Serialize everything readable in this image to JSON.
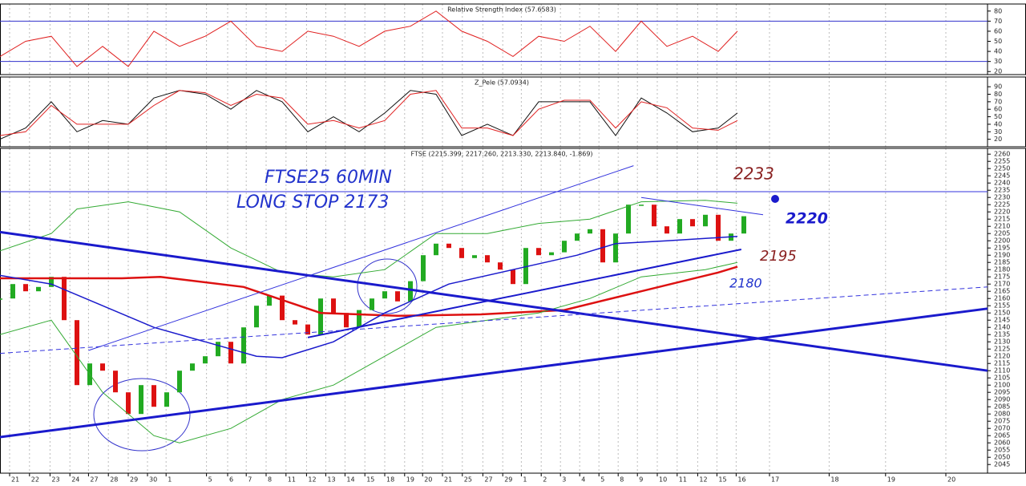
{
  "chart_data": [
    {
      "type": "line",
      "title": "Relative Strength Index (57.6583)",
      "xlim": [
        0,
        154
      ],
      "ylim": [
        17,
        87
      ],
      "yticks": [
        20,
        30,
        40,
        50,
        60,
        70,
        80
      ],
      "hlines": [
        70,
        30
      ],
      "hline_color": "#3333cc",
      "series": [
        {
          "color": "#e02020",
          "x": [
            0,
            4,
            8,
            12,
            16,
            20,
            24,
            28,
            32,
            36,
            40,
            44,
            48,
            52,
            56,
            60,
            64,
            68,
            72,
            76,
            80,
            84,
            88,
            92,
            96,
            100,
            104,
            108,
            112,
            115
          ],
          "values": [
            35,
            50,
            55,
            25,
            45,
            25,
            60,
            45,
            55,
            70,
            45,
            40,
            60,
            55,
            45,
            60,
            65,
            80,
            60,
            50,
            35,
            55,
            50,
            65,
            40,
            70,
            45,
            55,
            40,
            60
          ]
        }
      ]
    },
    {
      "type": "line",
      "title": "Z_Pele (57.0934)",
      "xlim": [
        0,
        154
      ],
      "ylim": [
        10,
        103
      ],
      "yticks": [
        20,
        30,
        40,
        50,
        60,
        70,
        80,
        90
      ],
      "series": [
        {
          "color": "#111111",
          "x": [
            0,
            4,
            8,
            12,
            16,
            20,
            24,
            28,
            32,
            36,
            40,
            44,
            48,
            52,
            56,
            60,
            64,
            68,
            72,
            76,
            80,
            84,
            88,
            92,
            96,
            100,
            104,
            108,
            112,
            115
          ],
          "values": [
            20,
            35,
            70,
            30,
            45,
            40,
            75,
            85,
            80,
            60,
            85,
            70,
            30,
            50,
            30,
            55,
            85,
            80,
            25,
            40,
            25,
            70,
            70,
            70,
            25,
            75,
            55,
            30,
            35,
            55
          ]
        },
        {
          "color": "#e02020",
          "x": [
            0,
            4,
            8,
            12,
            16,
            20,
            24,
            28,
            32,
            36,
            40,
            44,
            48,
            52,
            56,
            60,
            64,
            68,
            72,
            76,
            80,
            84,
            88,
            92,
            96,
            100,
            104,
            108,
            112,
            115
          ],
          "values": [
            25,
            30,
            65,
            40,
            40,
            40,
            65,
            85,
            82,
            65,
            80,
            75,
            40,
            45,
            35,
            45,
            80,
            85,
            35,
            35,
            25,
            60,
            72,
            72,
            35,
            70,
            62,
            35,
            32,
            45
          ]
        }
      ]
    },
    {
      "type": "candlestick",
      "title": "FTSE (2215.399, 2217.260, 2213.330, 2213.840, -1.869)",
      "xlim": [
        0,
        154
      ],
      "ylim": [
        2039,
        2264
      ],
      "yticks": [
        2045,
        2050,
        2055,
        2060,
        2065,
        2070,
        2075,
        2080,
        2085,
        2090,
        2095,
        2100,
        2105,
        2110,
        2115,
        2120,
        2125,
        2130,
        2135,
        2140,
        2145,
        2150,
        2155,
        2160,
        2165,
        2170,
        2175,
        2180,
        2185,
        2190,
        2195,
        2200,
        2205,
        2210,
        2215,
        2220,
        2225,
        2230,
        2235,
        2240,
        2245,
        2250,
        2255,
        2260
      ],
      "xticks": [
        {
          "value": 1.5,
          "label": "21"
        },
        {
          "value": 4.6,
          "label": "22"
        },
        {
          "value": 7.8,
          "label": "23"
        },
        {
          "value": 10.9,
          "label": "24"
        },
        {
          "value": 13.8,
          "label": "27"
        },
        {
          "value": 16.9,
          "label": "28"
        },
        {
          "value": 20,
          "label": "29"
        },
        {
          "value": 23,
          "label": "30"
        },
        {
          "value": 25.9,
          "label": "1"
        },
        {
          "value": 32.2,
          "label": "5"
        },
        {
          "value": 35.5,
          "label": "6"
        },
        {
          "value": 38.4,
          "label": "7"
        },
        {
          "value": 41.5,
          "label": "8"
        },
        {
          "value": 44.6,
          "label": "11"
        },
        {
          "value": 47.8,
          "label": "12"
        },
        {
          "value": 50.8,
          "label": "13"
        },
        {
          "value": 53.8,
          "label": "14"
        },
        {
          "value": 56.9,
          "label": "15"
        },
        {
          "value": 60,
          "label": "18"
        },
        {
          "value": 63.1,
          "label": "19"
        },
        {
          "value": 65.9,
          "label": "20"
        },
        {
          "value": 69,
          "label": "21"
        },
        {
          "value": 72.1,
          "label": "25"
        },
        {
          "value": 75.3,
          "label": "27"
        },
        {
          "value": 78.4,
          "label": "29"
        },
        {
          "value": 81.3,
          "label": "1"
        },
        {
          "value": 84.4,
          "label": "2"
        },
        {
          "value": 87.4,
          "label": "3"
        },
        {
          "value": 90.4,
          "label": "4"
        },
        {
          "value": 93.4,
          "label": "5"
        },
        {
          "value": 96.4,
          "label": "8"
        },
        {
          "value": 99.4,
          "label": "9"
        },
        {
          "value": 102.5,
          "label": "10"
        },
        {
          "value": 105.6,
          "label": "11"
        },
        {
          "value": 108.8,
          "label": "12"
        },
        {
          "value": 111.8,
          "label": "15"
        },
        {
          "value": 114.8,
          "label": "16"
        },
        {
          "value": 120,
          "label": "17"
        },
        {
          "value": 129.3,
          "label": "18"
        },
        {
          "value": 138.1,
          "label": "19"
        },
        {
          "value": 147.5,
          "label": "20"
        }
      ],
      "up_color": "#22aa22",
      "down_color": "#dd1111",
      "x": [
        0,
        2,
        4,
        6,
        8,
        10,
        12,
        14,
        16,
        18,
        20,
        22,
        24,
        26,
        28,
        30,
        32,
        34,
        36,
        38,
        40,
        42,
        44,
        46,
        48,
        50,
        52,
        54,
        56,
        58,
        60,
        62,
        64,
        66,
        68,
        70,
        72,
        74,
        76,
        78,
        80,
        82,
        84,
        86,
        88,
        90,
        92,
        94,
        96,
        98,
        100,
        102,
        104,
        106,
        108,
        110,
        112,
        114,
        116
      ],
      "values": [
        2160,
        2170,
        2165,
        2168,
        2175,
        2145,
        2100,
        2115,
        2110,
        2095,
        2080,
        2100,
        2085,
        2095,
        2110,
        2115,
        2120,
        2130,
        2115,
        2140,
        2155,
        2162,
        2145,
        2142,
        2135,
        2160,
        2150,
        2140,
        2152,
        2160,
        2165,
        2158,
        2172,
        2190,
        2198,
        2195,
        2188,
        2190,
        2185,
        2180,
        2170,
        2195,
        2190,
        2192,
        2200,
        2205,
        2208,
        2185,
        2205,
        2225,
        2225,
        2210,
        2205,
        2215,
        2210,
        2218,
        2200,
        2205,
        2217
      ],
      "series": [
        {
          "color": "#dd1111",
          "width": 2.5,
          "x": [
            0,
            19,
            25,
            38,
            50,
            62,
            75,
            88,
            100,
            112,
            115
          ],
          "values": [
            2174,
            2174,
            2175,
            2168,
            2150,
            2148,
            2149,
            2152,
            2165,
            2178,
            2182
          ]
        },
        {
          "color": "#1a1acc",
          "width": 1.5,
          "x": [
            0,
            8,
            16,
            24,
            32,
            40,
            44,
            52,
            60,
            70,
            80,
            90,
            96,
            104,
            115
          ],
          "values": [
            2176,
            2170,
            2155,
            2140,
            2130,
            2120,
            2119,
            2130,
            2150,
            2170,
            2180,
            2190,
            2198,
            2200,
            2203
          ]
        },
        {
          "color": "#33aa33",
          "width": 1,
          "x": [
            0,
            8,
            12,
            20,
            28,
            36,
            44,
            52,
            60,
            68,
            76,
            84,
            92,
            100,
            110,
            115
          ],
          "values": [
            2193,
            2205,
            2222,
            2227,
            2220,
            2195,
            2178,
            2175,
            2180,
            2205,
            2205,
            2212,
            2215,
            2227,
            2228,
            2226
          ]
        },
        {
          "color": "#33aa33",
          "width": 1,
          "x": [
            0,
            8,
            12,
            16,
            24,
            28,
            36,
            44,
            52,
            60,
            68,
            76,
            84,
            92,
            100,
            110,
            115
          ],
          "values": [
            2135,
            2145,
            2120,
            2095,
            2065,
            2060,
            2070,
            2090,
            2100,
            2120,
            2140,
            2145,
            2150,
            2160,
            2175,
            2180,
            2185
          ]
        }
      ],
      "lines": [
        {
          "color": "#1a1acc",
          "width": 3,
          "x": [
            0,
            154
          ],
          "values": [
            2064,
            2153
          ]
        },
        {
          "color": "#1a1acc",
          "width": 3,
          "x": [
            0,
            154
          ],
          "values": [
            2206,
            2110
          ]
        },
        {
          "color": "#1a1acc",
          "width": 2,
          "x": [
            48,
            115.6
          ],
          "values": [
            2133,
            2194
          ]
        },
        {
          "color": "#3333dd",
          "width": 1,
          "x": [
            13.8,
            98.8
          ],
          "values": [
            2124,
            2252
          ]
        },
        {
          "color": "#3333dd",
          "width": 1,
          "x": [
            0,
            154
          ],
          "values": [
            2122,
            2168
          ],
          "dash": true
        },
        {
          "color": "#3333dd",
          "width": 1,
          "x": [
            0,
            154
          ],
          "values": [
            2234,
            2234
          ]
        },
        {
          "color": "#3333dd",
          "width": 1,
          "x": [
            100,
            119
          ],
          "values": [
            2230,
            2218
          ]
        }
      ],
      "annotations": [
        "FTSE25 60MIN",
        "LONG STOP 2173",
        "2233",
        "2220",
        "2195",
        "2180"
      ]
    }
  ]
}
